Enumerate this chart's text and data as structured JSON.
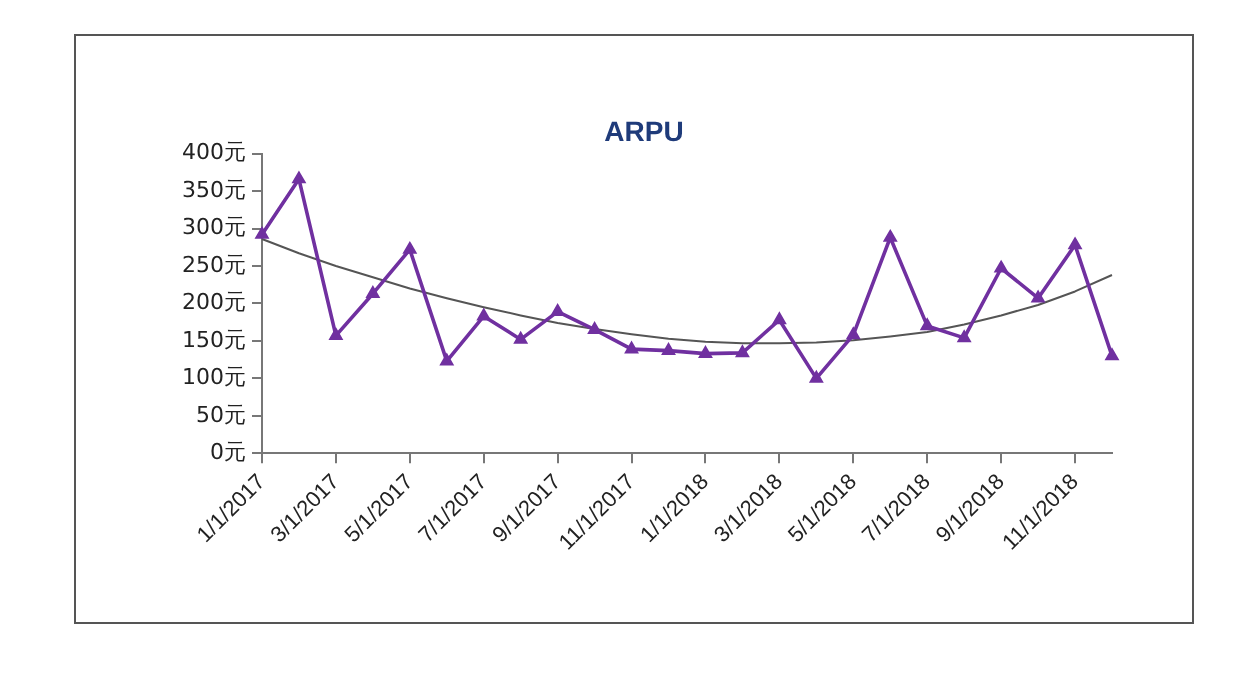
{
  "chart_data": {
    "type": "line",
    "title": "ARPU",
    "categories": [
      "1/1/2017",
      null,
      "3/1/2017",
      null,
      "5/1/2017",
      null,
      "7/1/2017",
      null,
      "9/1/2017",
      null,
      "11/1/2017",
      null,
      "1/1/2018",
      null,
      "3/1/2018",
      null,
      "5/1/2018",
      null,
      "7/1/2018",
      null,
      "9/1/2018",
      null,
      "11/1/2018",
      null
    ],
    "series": [
      {
        "color": "#7030a0",
        "marker": "triangle",
        "values": [
          292,
          366,
          157,
          213,
          272,
          123,
          183,
          152,
          189,
          165,
          139,
          137,
          133,
          134,
          178,
          100,
          158,
          288,
          170,
          154,
          247,
          207,
          278,
          130
        ]
      },
      {
        "type": "line",
        "color": "#555555",
        "marker": "none",
        "values": [
          286,
          267,
          250,
          235,
          220,
          207,
          195,
          184,
          174,
          166,
          159,
          153,
          149,
          147,
          147,
          148,
          151,
          156,
          162,
          172,
          184,
          198,
          216,
          238
        ]
      }
    ],
    "ylim": [
      0,
      400
    ],
    "yticks": [
      {
        "value": 0,
        "label": "0元"
      },
      {
        "value": 50,
        "label": "50元"
      },
      {
        "value": 100,
        "label": "100元"
      },
      {
        "value": 150,
        "label": "150元"
      },
      {
        "value": 200,
        "label": "200元"
      },
      {
        "value": 250,
        "label": "250元"
      },
      {
        "value": 300,
        "label": "300元"
      },
      {
        "value": 350,
        "label": "350元"
      },
      {
        "value": 400,
        "label": "400元"
      }
    ],
    "grid": false,
    "legend": false,
    "line_style": "solid"
  }
}
